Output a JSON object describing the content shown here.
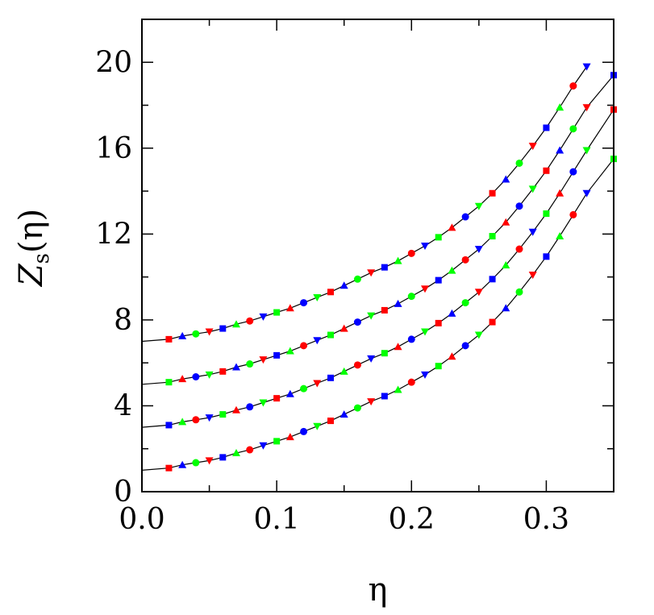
{
  "chart_data": {
    "type": "scatter",
    "xlabel": "η",
    "ylabel": {
      "main": "Z",
      "sub": "s",
      "arg": "(η)"
    },
    "xlim": [
      0.0,
      0.35
    ],
    "ylim": [
      0,
      22
    ],
    "x_ticks": [
      "0.0",
      "0.1",
      "0.2",
      "0.3"
    ],
    "x_tick_values": [
      0.0,
      0.1,
      0.2,
      0.3
    ],
    "y_ticks": [
      "0",
      "4",
      "8",
      "12",
      "16",
      "20"
    ],
    "y_tick_values": [
      0,
      4,
      8,
      12,
      16,
      20
    ],
    "grid": false,
    "legend": "none",
    "marker_colors": [
      "#ff0000",
      "#0000ff",
      "#00ff00"
    ],
    "curve_color": "#000000",
    "series": [
      {
        "offset": 0,
        "points": [
          [
            0.02,
            1.1
          ],
          [
            0.03,
            1.25
          ],
          [
            0.04,
            1.35
          ],
          [
            0.05,
            1.45
          ],
          [
            0.06,
            1.6
          ],
          [
            0.07,
            1.8
          ],
          [
            0.08,
            1.95
          ],
          [
            0.09,
            2.15
          ],
          [
            0.1,
            2.35
          ],
          [
            0.11,
            2.55
          ],
          [
            0.12,
            2.8
          ],
          [
            0.13,
            3.05
          ],
          [
            0.14,
            3.3
          ],
          [
            0.15,
            3.6
          ],
          [
            0.16,
            3.9
          ],
          [
            0.17,
            4.2
          ],
          [
            0.18,
            4.45
          ],
          [
            0.19,
            4.75
          ],
          [
            0.2,
            5.1
          ],
          [
            0.21,
            5.45
          ],
          [
            0.22,
            5.85
          ],
          [
            0.23,
            6.3
          ],
          [
            0.24,
            6.8
          ],
          [
            0.25,
            7.3
          ],
          [
            0.26,
            7.9
          ],
          [
            0.27,
            8.55
          ],
          [
            0.28,
            9.3
          ],
          [
            0.29,
            10.1
          ],
          [
            0.3,
            10.95
          ],
          [
            0.31,
            11.9
          ],
          [
            0.32,
            12.9
          ],
          [
            0.33,
            13.9
          ],
          [
            0.35,
            15.5
          ]
        ]
      },
      {
        "offset": 2,
        "points": [
          [
            0.02,
            3.1
          ],
          [
            0.03,
            3.25
          ],
          [
            0.04,
            3.35
          ],
          [
            0.05,
            3.45
          ],
          [
            0.06,
            3.6
          ],
          [
            0.07,
            3.8
          ],
          [
            0.08,
            3.95
          ],
          [
            0.09,
            4.15
          ],
          [
            0.1,
            4.35
          ],
          [
            0.11,
            4.55
          ],
          [
            0.12,
            4.8
          ],
          [
            0.13,
            5.05
          ],
          [
            0.14,
            5.3
          ],
          [
            0.15,
            5.6
          ],
          [
            0.16,
            5.9
          ],
          [
            0.17,
            6.2
          ],
          [
            0.18,
            6.45
          ],
          [
            0.19,
            6.75
          ],
          [
            0.2,
            7.1
          ],
          [
            0.21,
            7.45
          ],
          [
            0.22,
            7.85
          ],
          [
            0.23,
            8.3
          ],
          [
            0.24,
            8.8
          ],
          [
            0.25,
            9.3
          ],
          [
            0.26,
            9.9
          ],
          [
            0.27,
            10.55
          ],
          [
            0.28,
            11.3
          ],
          [
            0.29,
            12.1
          ],
          [
            0.3,
            12.95
          ],
          [
            0.31,
            13.9
          ],
          [
            0.32,
            14.9
          ],
          [
            0.33,
            15.9
          ],
          [
            0.35,
            17.8
          ]
        ]
      },
      {
        "offset": 4,
        "points": [
          [
            0.02,
            5.1
          ],
          [
            0.03,
            5.25
          ],
          [
            0.04,
            5.35
          ],
          [
            0.05,
            5.45
          ],
          [
            0.06,
            5.6
          ],
          [
            0.07,
            5.8
          ],
          [
            0.08,
            5.95
          ],
          [
            0.09,
            6.15
          ],
          [
            0.1,
            6.35
          ],
          [
            0.11,
            6.55
          ],
          [
            0.12,
            6.8
          ],
          [
            0.13,
            7.05
          ],
          [
            0.14,
            7.3
          ],
          [
            0.15,
            7.6
          ],
          [
            0.16,
            7.9
          ],
          [
            0.17,
            8.2
          ],
          [
            0.18,
            8.45
          ],
          [
            0.19,
            8.75
          ],
          [
            0.2,
            9.1
          ],
          [
            0.21,
            9.45
          ],
          [
            0.22,
            9.85
          ],
          [
            0.23,
            10.3
          ],
          [
            0.24,
            10.8
          ],
          [
            0.25,
            11.3
          ],
          [
            0.26,
            11.9
          ],
          [
            0.27,
            12.55
          ],
          [
            0.28,
            13.3
          ],
          [
            0.29,
            14.1
          ],
          [
            0.3,
            14.95
          ],
          [
            0.31,
            15.9
          ],
          [
            0.32,
            16.9
          ],
          [
            0.33,
            17.9
          ],
          [
            0.35,
            19.4
          ]
        ]
      },
      {
        "offset": 6,
        "points": [
          [
            0.02,
            7.1
          ],
          [
            0.03,
            7.25
          ],
          [
            0.04,
            7.35
          ],
          [
            0.05,
            7.45
          ],
          [
            0.06,
            7.6
          ],
          [
            0.07,
            7.8
          ],
          [
            0.08,
            7.95
          ],
          [
            0.09,
            8.15
          ],
          [
            0.1,
            8.35
          ],
          [
            0.11,
            8.55
          ],
          [
            0.12,
            8.8
          ],
          [
            0.13,
            9.05
          ],
          [
            0.14,
            9.3
          ],
          [
            0.15,
            9.6
          ],
          [
            0.16,
            9.9
          ],
          [
            0.17,
            10.2
          ],
          [
            0.18,
            10.45
          ],
          [
            0.19,
            10.75
          ],
          [
            0.2,
            11.1
          ],
          [
            0.21,
            11.45
          ],
          [
            0.22,
            11.85
          ],
          [
            0.23,
            12.3
          ],
          [
            0.24,
            12.8
          ],
          [
            0.25,
            13.3
          ],
          [
            0.26,
            13.9
          ],
          [
            0.27,
            14.55
          ],
          [
            0.28,
            15.3
          ],
          [
            0.29,
            16.1
          ],
          [
            0.3,
            16.95
          ],
          [
            0.31,
            17.9
          ],
          [
            0.32,
            18.9
          ],
          [
            0.33,
            19.8
          ]
        ]
      }
    ]
  }
}
